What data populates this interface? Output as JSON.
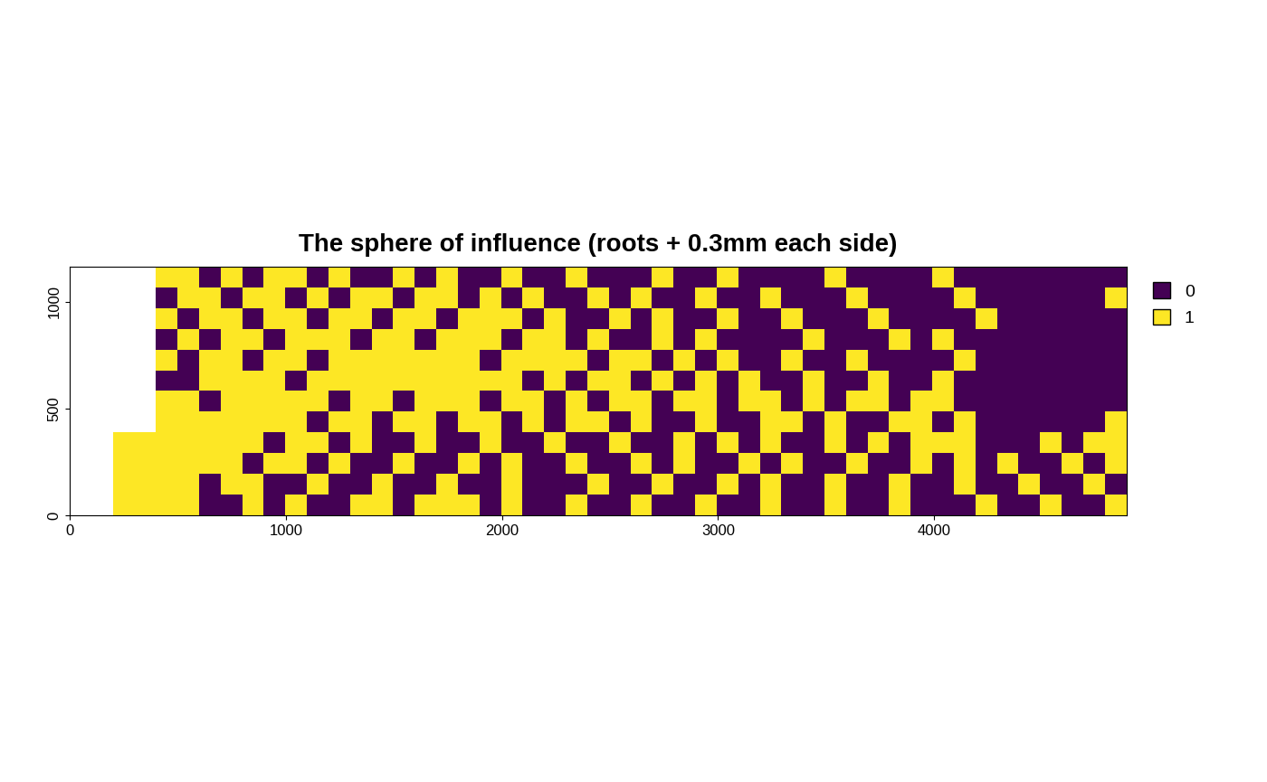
{
  "chart_data": {
    "type": "raster",
    "title": "The sphere of influence (roots + 0.3mm each side)",
    "xlim": [
      0,
      4890
    ],
    "ylim": [
      0,
      1165
    ],
    "xticks": [
      0,
      1000,
      2000,
      3000,
      4000
    ],
    "yticks": [
      0,
      500,
      1000
    ],
    "legend": "right",
    "series": [
      {
        "name": "0",
        "color": "#440154"
      },
      {
        "name": "1",
        "color": "#FDE725"
      }
    ],
    "cells": [
      [
        null,
        null,
        null,
        null,
        1,
        1,
        0,
        1,
        0,
        1,
        1,
        0,
        1,
        0,
        0,
        1,
        0,
        1,
        0,
        0,
        1,
        0,
        0,
        1,
        0,
        0,
        0,
        1,
        0,
        0,
        1,
        0,
        0,
        0,
        0,
        1,
        0,
        0,
        0,
        0,
        1,
        0,
        0,
        0,
        0,
        0,
        0,
        0,
        0
      ],
      [
        null,
        null,
        null,
        null,
        0,
        1,
        1,
        0,
        1,
        1,
        0,
        1,
        0,
        1,
        1,
        0,
        1,
        1,
        0,
        1,
        0,
        1,
        0,
        0,
        1,
        0,
        1,
        0,
        0,
        1,
        0,
        0,
        1,
        0,
        0,
        0,
        1,
        0,
        0,
        0,
        0,
        1,
        0,
        0,
        0,
        0,
        0,
        0,
        1
      ],
      [
        null,
        null,
        null,
        null,
        1,
        0,
        1,
        1,
        0,
        1,
        1,
        0,
        1,
        1,
        0,
        1,
        1,
        0,
        1,
        1,
        1,
        0,
        1,
        0,
        0,
        1,
        0,
        1,
        0,
        0,
        1,
        0,
        0,
        1,
        0,
        0,
        0,
        1,
        0,
        0,
        0,
        0,
        1,
        0,
        0,
        0,
        0,
        0,
        0
      ],
      [
        null,
        null,
        null,
        null,
        0,
        1,
        0,
        1,
        1,
        0,
        1,
        1,
        1,
        0,
        1,
        1,
        0,
        1,
        1,
        1,
        0,
        1,
        1,
        0,
        1,
        0,
        0,
        1,
        0,
        1,
        0,
        0,
        0,
        0,
        1,
        0,
        0,
        0,
        1,
        0,
        1,
        0,
        0,
        0,
        0,
        0,
        0,
        0,
        0
      ],
      [
        null,
        null,
        null,
        null,
        1,
        0,
        1,
        1,
        0,
        1,
        1,
        0,
        1,
        1,
        1,
        1,
        1,
        1,
        1,
        0,
        1,
        1,
        1,
        1,
        0,
        1,
        1,
        0,
        1,
        0,
        1,
        0,
        0,
        1,
        0,
        0,
        1,
        0,
        0,
        0,
        0,
        1,
        0,
        0,
        0,
        0,
        0,
        0,
        0
      ],
      [
        null,
        null,
        null,
        null,
        0,
        0,
        1,
        1,
        1,
        1,
        0,
        1,
        1,
        1,
        1,
        1,
        1,
        1,
        1,
        1,
        1,
        0,
        1,
        0,
        1,
        1,
        0,
        1,
        0,
        1,
        0,
        1,
        0,
        0,
        1,
        0,
        0,
        1,
        0,
        0,
        1,
        0,
        0,
        0,
        0,
        0,
        0,
        0,
        0
      ],
      [
        null,
        null,
        null,
        null,
        1,
        1,
        0,
        1,
        1,
        1,
        1,
        1,
        0,
        1,
        1,
        0,
        1,
        1,
        1,
        0,
        1,
        1,
        0,
        1,
        0,
        1,
        1,
        0,
        1,
        1,
        0,
        1,
        1,
        0,
        1,
        0,
        1,
        1,
        0,
        1,
        1,
        0,
        0,
        0,
        0,
        0,
        0,
        0,
        0
      ],
      [
        null,
        null,
        null,
        null,
        1,
        1,
        1,
        1,
        1,
        1,
        1,
        0,
        1,
        1,
        0,
        1,
        1,
        0,
        1,
        1,
        0,
        1,
        0,
        1,
        1,
        0,
        1,
        0,
        0,
        1,
        0,
        0,
        1,
        1,
        0,
        1,
        0,
        0,
        1,
        1,
        0,
        1,
        0,
        0,
        0,
        0,
        0,
        0,
        1
      ],
      [
        null,
        null,
        1,
        1,
        1,
        1,
        1,
        1,
        1,
        0,
        1,
        1,
        0,
        1,
        0,
        0,
        1,
        0,
        0,
        1,
        0,
        0,
        1,
        0,
        0,
        1,
        0,
        0,
        1,
        0,
        1,
        0,
        1,
        0,
        0,
        1,
        0,
        1,
        0,
        1,
        1,
        1,
        0,
        0,
        0,
        1,
        0,
        1,
        1
      ],
      [
        null,
        null,
        1,
        1,
        1,
        1,
        1,
        1,
        0,
        1,
        1,
        0,
        1,
        0,
        0,
        1,
        0,
        0,
        1,
        0,
        1,
        0,
        0,
        1,
        0,
        0,
        1,
        0,
        1,
        0,
        0,
        1,
        0,
        1,
        0,
        0,
        1,
        0,
        0,
        1,
        0,
        1,
        0,
        1,
        0,
        0,
        1,
        0,
        1
      ],
      [
        null,
        null,
        1,
        1,
        1,
        1,
        0,
        1,
        1,
        0,
        0,
        1,
        0,
        0,
        1,
        0,
        0,
        1,
        0,
        0,
        1,
        0,
        0,
        0,
        1,
        0,
        0,
        1,
        0,
        0,
        1,
        0,
        1,
        0,
        0,
        1,
        0,
        0,
        1,
        0,
        0,
        1,
        0,
        0,
        1,
        0,
        0,
        1,
        0
      ],
      [
        null,
        null,
        1,
        1,
        1,
        1,
        0,
        0,
        1,
        0,
        1,
        0,
        0,
        1,
        1,
        0,
        1,
        1,
        1,
        0,
        1,
        0,
        0,
        1,
        0,
        0,
        1,
        0,
        0,
        1,
        0,
        0,
        1,
        0,
        0,
        1,
        0,
        0,
        1,
        0,
        0,
        0,
        1,
        0,
        0,
        1,
        0,
        0,
        1
      ]
    ]
  }
}
